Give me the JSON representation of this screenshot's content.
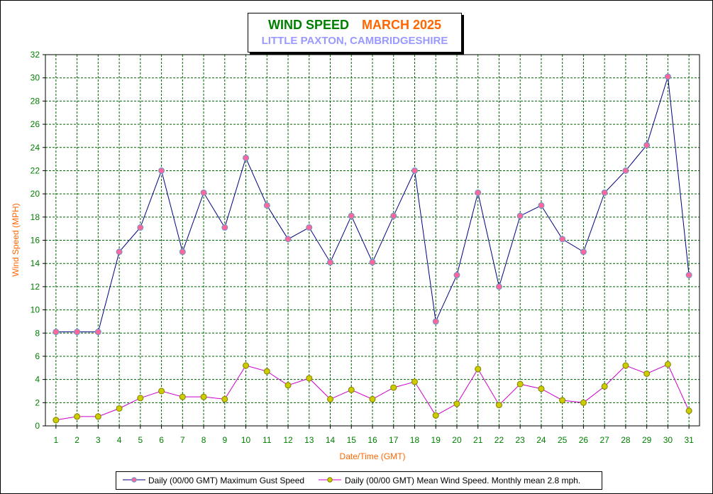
{
  "header": {
    "title": "WIND SPEED",
    "month": "MARCH 2025",
    "subtitle": "LITTLE PAXTON, CAMBRIDGESHIRE"
  },
  "colors": {
    "title": "#008000",
    "month": "#ff6600",
    "subtitle": "#9999ff",
    "axis_label": "#ff6600",
    "tick_label": "#008000",
    "grid": "#006400",
    "gust_line": "#000080",
    "gust_marker": "#ff6699",
    "gust_marker_edge": "#6699cc",
    "mean_line": "#cc00cc",
    "mean_marker": "#cccc00",
    "mean_marker_edge": "#808000"
  },
  "chart_data": {
    "type": "line",
    "xlabel": "Date/Time (GMT)",
    "ylabel": "Wind Speed (MPH)",
    "ylim": [
      0,
      32
    ],
    "yticks": [
      0,
      2,
      4,
      6,
      8,
      10,
      12,
      14,
      16,
      18,
      20,
      22,
      24,
      26,
      28,
      30,
      32
    ],
    "categories": [
      "1",
      "2",
      "3",
      "4",
      "5",
      "6",
      "7",
      "8",
      "9",
      "10",
      "11",
      "12",
      "13",
      "14",
      "15",
      "16",
      "17",
      "18",
      "19",
      "20",
      "21",
      "22",
      "23",
      "24",
      "25",
      "26",
      "27",
      "28",
      "29",
      "30",
      "31"
    ],
    "grid": true,
    "legend_position": "bottom",
    "series": [
      {
        "name": "Daily (00/00 GMT) Maximum Gust Speed",
        "values": [
          8.1,
          8.1,
          8.1,
          15,
          17.1,
          22,
          15,
          20.1,
          17.1,
          23.1,
          19,
          16.1,
          17.1,
          14.1,
          18.1,
          14.1,
          18.1,
          22,
          9,
          13,
          20.1,
          12,
          18.1,
          19,
          16.1,
          15,
          20.1,
          22,
          24.2,
          30.1,
          13
        ]
      },
      {
        "name": "Daily (00/00 GMT) Mean Wind Speed. Monthly mean 2.8 mph.",
        "values": [
          0.5,
          0.8,
          0.8,
          1.5,
          2.4,
          3,
          2.5,
          2.5,
          2.3,
          5.2,
          4.7,
          3.5,
          4.1,
          2.3,
          3.1,
          2.3,
          3.3,
          3.8,
          0.9,
          1.9,
          4.9,
          1.8,
          3.6,
          3.2,
          2.2,
          2,
          3.4,
          5.2,
          4.5,
          5.3,
          1.3
        ]
      }
    ]
  }
}
